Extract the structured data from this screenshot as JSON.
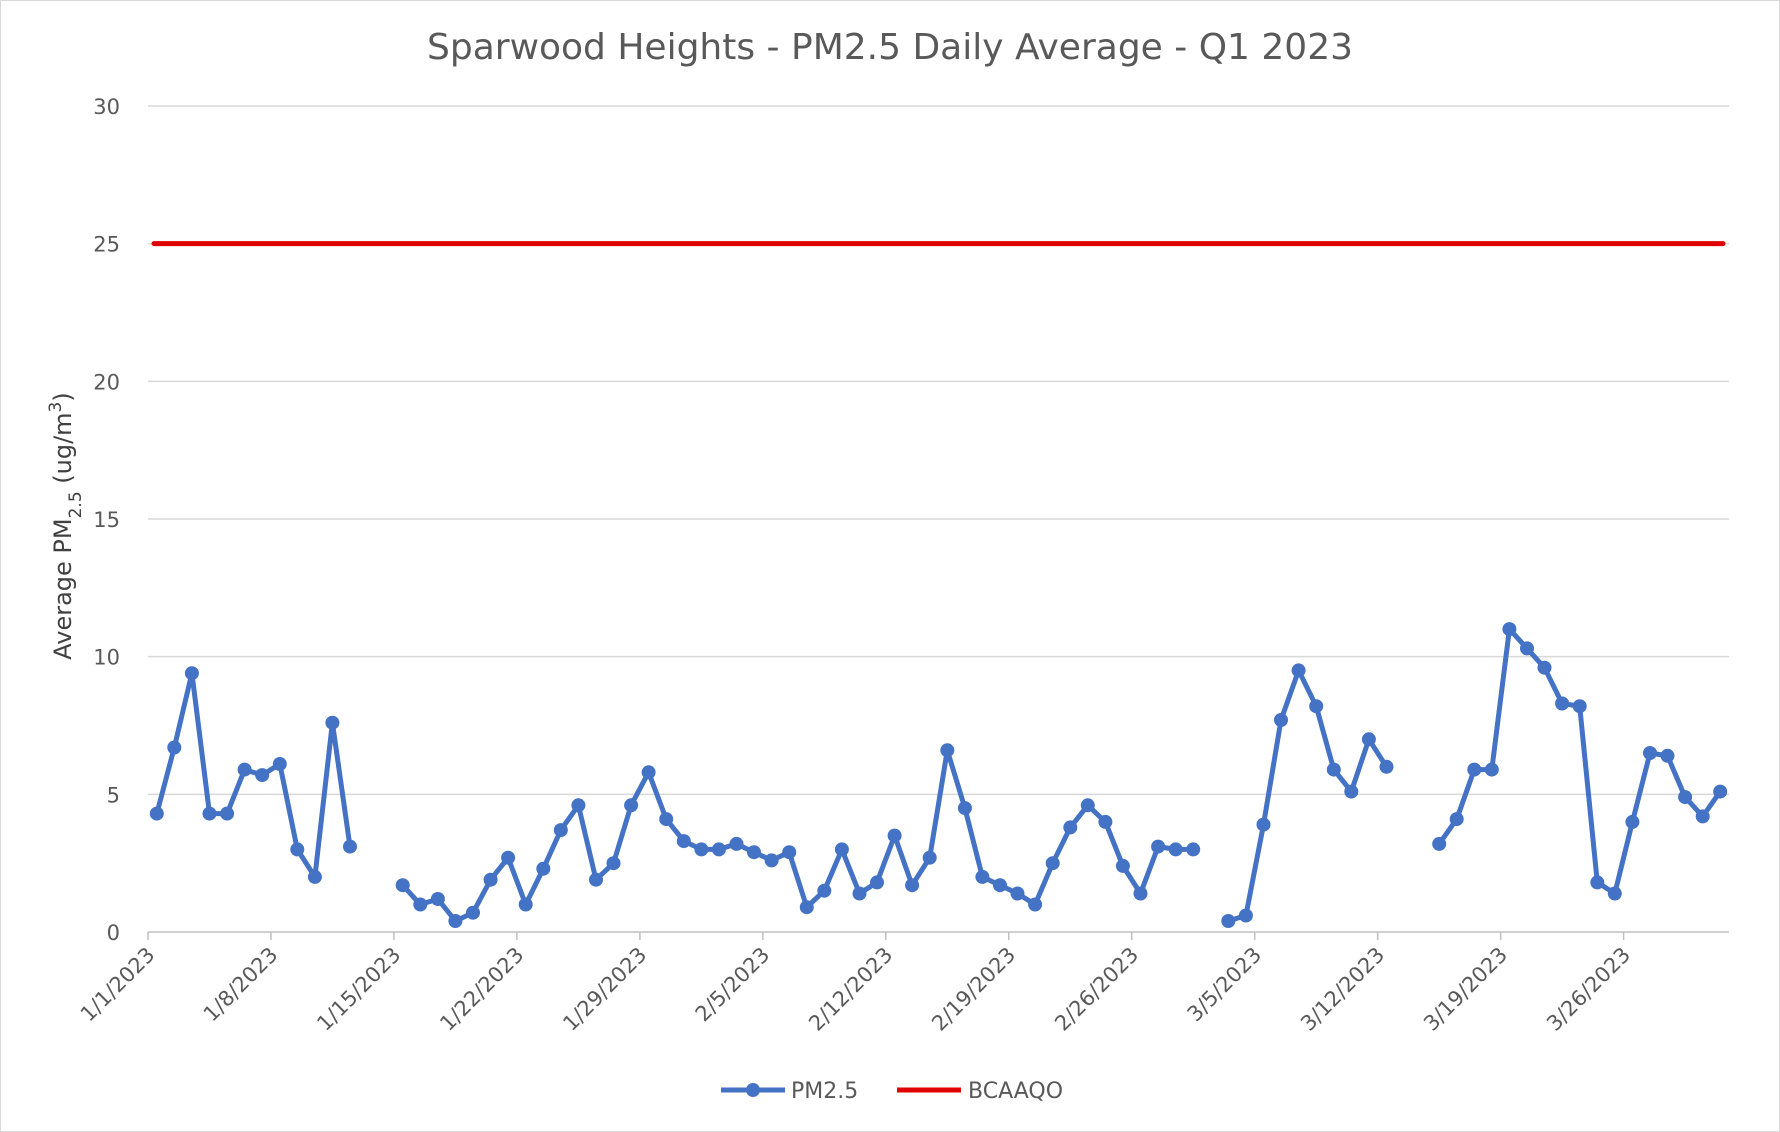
{
  "chart_data": {
    "type": "line",
    "title": "Sparwood Heights - PM2.5 Daily Average - Q1 2023",
    "ylabel_main": "Average PM",
    "ylabel_sub": "2.5",
    "ylabel_unit": " (ug/m",
    "ylabel_sup": "3",
    "ylabel_close": ")",
    "ylim": [
      0,
      30
    ],
    "yticks": [
      0,
      5,
      10,
      15,
      20,
      25,
      30
    ],
    "ytick_labels": [
      "0",
      "5",
      "10",
      "15",
      "20",
      "25",
      "30"
    ],
    "xlim": [
      "2023-01-01",
      "2023-03-31"
    ],
    "xticks": [
      "2023-01-01",
      "2023-01-08",
      "2023-01-15",
      "2023-01-22",
      "2023-01-29",
      "2023-02-05",
      "2023-02-12",
      "2023-02-19",
      "2023-02-26",
      "2023-03-05",
      "2023-03-12",
      "2023-03-19",
      "2023-03-26"
    ],
    "xtick_labels": [
      "1/1/2023",
      "1/8/2023",
      "1/15/2023",
      "1/22/2023",
      "1/29/2023",
      "2/5/2023",
      "2/12/2023",
      "2/19/2023",
      "2/26/2023",
      "3/5/2023",
      "3/12/2023",
      "3/19/2023",
      "3/26/2023"
    ],
    "grid": true,
    "legend": "bottom",
    "series": [
      {
        "name": "PM2.5",
        "color": "#4472C4",
        "marker": "circle",
        "x": [
          "2023-01-01",
          "2023-01-02",
          "2023-01-03",
          "2023-01-04",
          "2023-01-05",
          "2023-01-06",
          "2023-01-07",
          "2023-01-08",
          "2023-01-09",
          "2023-01-10",
          "2023-01-11",
          "2023-01-12",
          "2023-01-13",
          "2023-01-14",
          "2023-01-15",
          "2023-01-16",
          "2023-01-17",
          "2023-01-18",
          "2023-01-19",
          "2023-01-20",
          "2023-01-21",
          "2023-01-22",
          "2023-01-23",
          "2023-01-24",
          "2023-01-25",
          "2023-01-26",
          "2023-01-27",
          "2023-01-28",
          "2023-01-29",
          "2023-01-30",
          "2023-01-31",
          "2023-02-01",
          "2023-02-02",
          "2023-02-03",
          "2023-02-04",
          "2023-02-05",
          "2023-02-06",
          "2023-02-07",
          "2023-02-08",
          "2023-02-09",
          "2023-02-10",
          "2023-02-11",
          "2023-02-12",
          "2023-02-13",
          "2023-02-14",
          "2023-02-15",
          "2023-02-16",
          "2023-02-17",
          "2023-02-18",
          "2023-02-19",
          "2023-02-20",
          "2023-02-21",
          "2023-02-22",
          "2023-02-23",
          "2023-02-24",
          "2023-02-25",
          "2023-02-26",
          "2023-02-27",
          "2023-02-28",
          "2023-03-01",
          "2023-03-02",
          "2023-03-03",
          "2023-03-04",
          "2023-03-05",
          "2023-03-06",
          "2023-03-07",
          "2023-03-08",
          "2023-03-09",
          "2023-03-10",
          "2023-03-11",
          "2023-03-12",
          "2023-03-13",
          "2023-03-14",
          "2023-03-15",
          "2023-03-16",
          "2023-03-17",
          "2023-03-18",
          "2023-03-19",
          "2023-03-20",
          "2023-03-21",
          "2023-03-22",
          "2023-03-23",
          "2023-03-24",
          "2023-03-25",
          "2023-03-26",
          "2023-03-27",
          "2023-03-28",
          "2023-03-29",
          "2023-03-30",
          "2023-03-31"
        ],
        "values": [
          4.3,
          6.7,
          9.4,
          4.3,
          4.3,
          5.9,
          5.7,
          6.1,
          3.0,
          2.0,
          7.6,
          3.1,
          null,
          null,
          1.7,
          1.0,
          1.2,
          0.4,
          0.7,
          1.9,
          2.7,
          1.0,
          2.3,
          3.7,
          4.6,
          1.9,
          2.5,
          4.6,
          5.8,
          4.1,
          3.3,
          3.0,
          3.0,
          3.2,
          2.9,
          2.6,
          2.9,
          0.9,
          1.5,
          3.0,
          1.4,
          1.8,
          3.5,
          1.7,
          2.7,
          6.6,
          4.5,
          2.0,
          1.7,
          1.4,
          1.0,
          2.5,
          3.8,
          4.6,
          4.0,
          2.4,
          1.4,
          3.1,
          3.0,
          3.0,
          null,
          0.4,
          0.6,
          3.9,
          7.7,
          9.5,
          8.2,
          5.9,
          5.1,
          7.0,
          6.0,
          null,
          null,
          3.2,
          4.1,
          5.9,
          5.9,
          11.0,
          10.3,
          9.6,
          8.3,
          8.2,
          1.8,
          1.4,
          4.0,
          6.5,
          6.4,
          4.9,
          4.2,
          5.1
        ]
      },
      {
        "name": "BCAAQO",
        "color": "#E00000",
        "x": [
          "2023-01-01",
          "2023-03-31"
        ],
        "values": [
          25,
          25
        ]
      }
    ]
  }
}
